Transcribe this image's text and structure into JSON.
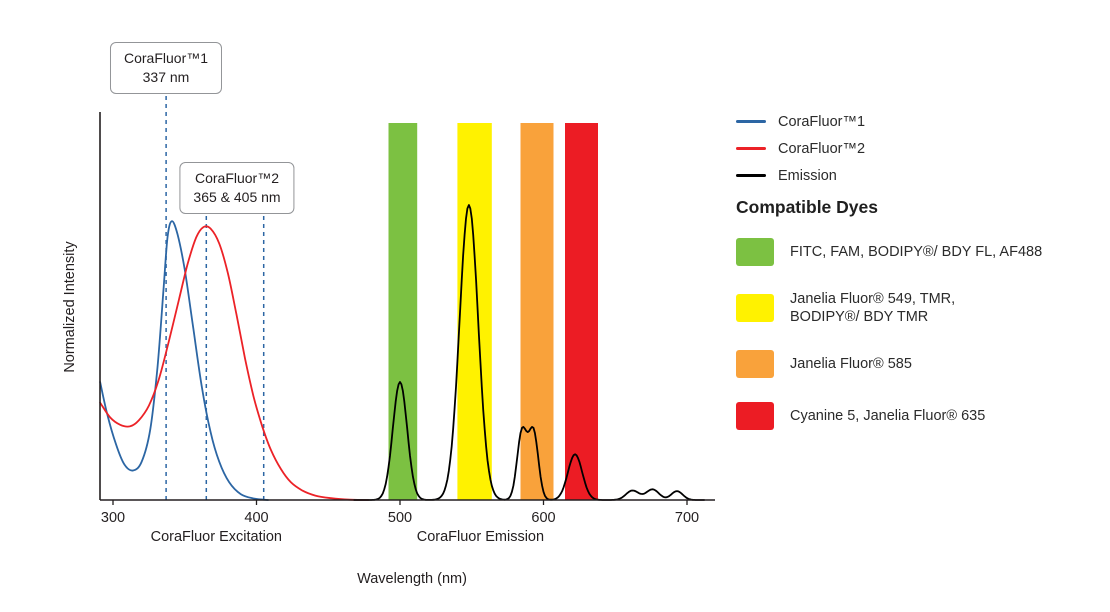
{
  "chart_data": {
    "type": "line",
    "title": "",
    "xlabel": "Wavelength (nm)",
    "ylabel": "Normalized Intensity",
    "xlim": [
      300,
      700
    ],
    "ylim": [
      0,
      1
    ],
    "grid": false,
    "legend_position": "right",
    "x_ticks": [
      300,
      400,
      500,
      600,
      700
    ],
    "region_labels": [
      {
        "label": "CoraFluor Excitation",
        "center_nm": 372
      },
      {
        "label": "CoraFluor Emission",
        "center_nm": 556
      }
    ],
    "annotations": [
      {
        "lines": [
          "CoraFluor™1",
          "337 nm"
        ],
        "wavelengths_nm": [
          337
        ]
      },
      {
        "lines": [
          "CoraFluor™2",
          "365 & 405 nm"
        ],
        "wavelengths_nm": [
          365,
          405
        ]
      }
    ],
    "bands": [
      {
        "name": "green",
        "from_nm": 492,
        "to_nm": 512,
        "color": "#7cc142"
      },
      {
        "name": "yellow",
        "from_nm": 540,
        "to_nm": 564,
        "color": "#fff200"
      },
      {
        "name": "orange",
        "from_nm": 584,
        "to_nm": 607,
        "color": "#f9a23b"
      },
      {
        "name": "red",
        "from_nm": 615,
        "to_nm": 638,
        "color": "#ec1c24"
      }
    ],
    "series": [
      {
        "name": "CoraFluor™1",
        "kind": "excitation",
        "color": "#2c66a4",
        "points": [
          [
            291,
            0.4
          ],
          [
            296,
            0.29
          ],
          [
            302,
            0.19
          ],
          [
            308,
            0.12
          ],
          [
            314,
            0.1
          ],
          [
            320,
            0.13
          ],
          [
            326,
            0.24
          ],
          [
            331,
            0.45
          ],
          [
            335,
            0.7
          ],
          [
            338,
            0.89
          ],
          [
            341,
            0.945
          ],
          [
            345,
            0.9
          ],
          [
            350,
            0.78
          ],
          [
            356,
            0.58
          ],
          [
            362,
            0.38
          ],
          [
            368,
            0.23
          ],
          [
            374,
            0.13
          ],
          [
            381,
            0.06
          ],
          [
            389,
            0.02
          ],
          [
            398,
            0.005
          ],
          [
            408,
            0.0
          ]
        ]
      },
      {
        "name": "CoraFluor™2",
        "kind": "excitation",
        "color": "#ec2227",
        "points": [
          [
            291,
            0.33
          ],
          [
            298,
            0.28
          ],
          [
            305,
            0.255
          ],
          [
            312,
            0.25
          ],
          [
            318,
            0.27
          ],
          [
            325,
            0.32
          ],
          [
            332,
            0.41
          ],
          [
            339,
            0.54
          ],
          [
            346,
            0.68
          ],
          [
            352,
            0.8
          ],
          [
            358,
            0.89
          ],
          [
            363,
            0.925
          ],
          [
            368,
            0.92
          ],
          [
            374,
            0.87
          ],
          [
            380,
            0.77
          ],
          [
            386,
            0.63
          ],
          [
            392,
            0.48
          ],
          [
            398,
            0.35
          ],
          [
            404,
            0.25
          ],
          [
            410,
            0.17
          ],
          [
            417,
            0.105
          ],
          [
            424,
            0.06
          ],
          [
            432,
            0.032
          ],
          [
            441,
            0.015
          ],
          [
            452,
            0.006
          ],
          [
            465,
            0.001
          ],
          [
            478,
            0.0
          ]
        ]
      },
      {
        "name": "Emission",
        "kind": "emission",
        "color": "#000000",
        "range_nm": [
          468,
          712
        ],
        "peaks": [
          {
            "center_nm": 500,
            "height": 0.4,
            "sigma_nm": 5
          },
          {
            "center_nm": 548,
            "height": 1.0,
            "sigma_nm": 6.5
          },
          {
            "center_nm": 585,
            "height": 0.23,
            "sigma_nm": 3.4
          },
          {
            "center_nm": 593,
            "height": 0.23,
            "sigma_nm": 3.4
          },
          {
            "center_nm": 622,
            "height": 0.155,
            "sigma_nm": 5
          },
          {
            "center_nm": 662,
            "height": 0.032,
            "sigma_nm": 4.5
          },
          {
            "center_nm": 676,
            "height": 0.036,
            "sigma_nm": 4.5
          },
          {
            "center_nm": 693,
            "height": 0.03,
            "sigma_nm": 4
          }
        ]
      }
    ]
  },
  "legend": {
    "items": [
      {
        "label": "CoraFluor™1",
        "color": "#2c66a4"
      },
      {
        "label": "CoraFluor™2",
        "color": "#ec2227"
      },
      {
        "label": "Emission",
        "color": "#000000"
      }
    ]
  },
  "dyes": {
    "heading": "Compatible Dyes",
    "items": [
      {
        "color": "#7cc142",
        "label": "FITC, FAM, BODIPY®/ BDY FL, AF488"
      },
      {
        "color": "#fff200",
        "label": "Janelia Fluor® 549, TMR,\nBODIPY®/ BDY TMR"
      },
      {
        "color": "#f9a23b",
        "label": "Janelia Fluor® 585"
      },
      {
        "color": "#ec1c24",
        "label": "Cyanine 5, Janelia Fluor® 635"
      }
    ]
  }
}
